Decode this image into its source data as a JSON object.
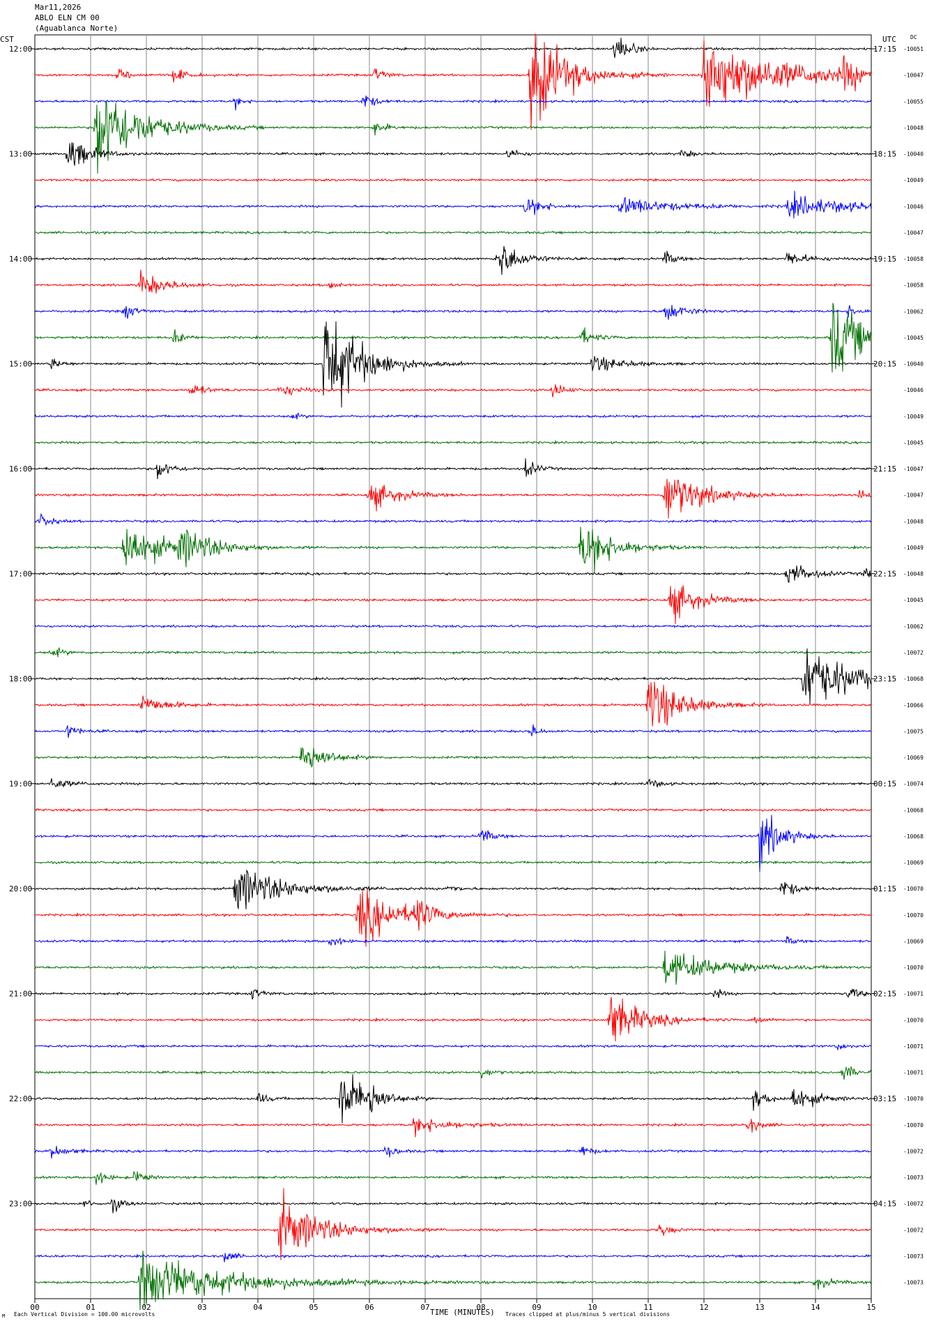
{
  "header": {
    "date": "Mar11,2026",
    "station": "ABLO ELN CM 00",
    "site": "(Aguablanca Norte)",
    "left_tz": "CST",
    "right_tz": "UTC",
    "dc_label": "DC"
  },
  "footer": {
    "xlabel": "TIME (MINUTES)",
    "scale_note": "Each Vertical Division =  100.00 microvolts",
    "clip_note": "Traces clipped at plus/minus 5 vertical divisions",
    "logo": "M"
  },
  "colors": [
    "#000000",
    "#ff0000",
    "#0000ff",
    "#007000"
  ],
  "chart_data": {
    "type": "line",
    "description": "helicorder seismogram, 15 minutes per line",
    "x_ticks": [
      "00",
      "01",
      "02",
      "03",
      "04",
      "05",
      "06",
      "07",
      "08",
      "09",
      "10",
      "11",
      "12",
      "13",
      "14",
      "15"
    ],
    "xlim": [
      0,
      15
    ],
    "hour_labels_cst": [
      "12:00",
      "13:00",
      "14:00",
      "15:00",
      "16:00",
      "17:00",
      "18:00",
      "19:00",
      "20:00",
      "21:00",
      "22:00",
      "23:00"
    ],
    "hour_labels_utc": [
      "17:15",
      "18:15",
      "19:15",
      "20:15",
      "21:15",
      "22:15",
      "23:15",
      "00:15",
      "01:15",
      "02:15",
      "03:15",
      "04:15"
    ],
    "dc_offsets": [
      "-10051",
      "-10047",
      "-10055",
      "-10048",
      "-10040",
      "-10049",
      "-10046",
      "-10047",
      "-10058",
      "-10058",
      "-10062",
      "-10045",
      "-10040",
      "-10046",
      "-10049",
      "-10045",
      "-10047",
      "-10047",
      "-10048",
      "-10049",
      "-10048",
      "-10045",
      "-10062",
      "-10072",
      "-10068",
      "-10066",
      "-10075",
      "-10069",
      "-10074",
      "-10068",
      "-10068",
      "-10069",
      "-10070",
      "-10070",
      "-10069",
      "-10070",
      "-10071",
      "-10070",
      "-10071",
      "-10071",
      "-10070",
      "-10070",
      "-10072",
      "-10073",
      "-10072",
      "-10072",
      "-10073",
      "-10073"
    ],
    "events": [
      {
        "line": 0,
        "minute": 10.4,
        "amp": 22,
        "dur": 0.4
      },
      {
        "line": 1,
        "minute": 8.9,
        "amp": 75,
        "dur": 1.0
      },
      {
        "line": 1,
        "minute": 12.0,
        "amp": 55,
        "dur": 2.2
      },
      {
        "line": 1,
        "minute": 14.5,
        "amp": 20,
        "dur": 0.5
      },
      {
        "line": 1,
        "minute": 6.1,
        "amp": 10,
        "dur": 0.3
      },
      {
        "line": 1,
        "minute": 2.5,
        "amp": 12,
        "dur": 0.3
      },
      {
        "line": 1,
        "minute": 1.5,
        "amp": 8,
        "dur": 0.4
      },
      {
        "line": 2,
        "minute": 5.9,
        "amp": 12,
        "dur": 0.3
      },
      {
        "line": 2,
        "minute": 3.6,
        "amp": 8,
        "dur": 0.2
      },
      {
        "line": 3,
        "minute": 1.1,
        "amp": 70,
        "dur": 1.2
      },
      {
        "line": 3,
        "minute": 6.1,
        "amp": 10,
        "dur": 0.3
      },
      {
        "line": 4,
        "minute": 0.6,
        "amp": 25,
        "dur": 0.6
      },
      {
        "line": 4,
        "minute": 8.5,
        "amp": 8,
        "dur": 0.3
      },
      {
        "line": 4,
        "minute": 11.6,
        "amp": 7,
        "dur": 0.3
      },
      {
        "line": 6,
        "minute": 8.8,
        "amp": 14,
        "dur": 0.5
      },
      {
        "line": 6,
        "minute": 10.5,
        "amp": 12,
        "dur": 1.5
      },
      {
        "line": 6,
        "minute": 13.5,
        "amp": 14,
        "dur": 2.0
      },
      {
        "line": 8,
        "minute": 8.3,
        "amp": 30,
        "dur": 0.6
      },
      {
        "line": 8,
        "minute": 11.3,
        "amp": 10,
        "dur": 0.3
      },
      {
        "line": 8,
        "minute": 13.5,
        "amp": 10,
        "dur": 0.6
      },
      {
        "line": 9,
        "minute": 1.9,
        "amp": 18,
        "dur": 0.7
      },
      {
        "line": 9,
        "minute": 5.3,
        "amp": 8,
        "dur": 0.2
      },
      {
        "line": 10,
        "minute": 1.6,
        "amp": 12,
        "dur": 0.3
      },
      {
        "line": 10,
        "minute": 11.3,
        "amp": 16,
        "dur": 0.5
      },
      {
        "line": 10,
        "minute": 14.6,
        "amp": 8,
        "dur": 0.3
      },
      {
        "line": 11,
        "minute": 2.5,
        "amp": 10,
        "dur": 0.3
      },
      {
        "line": 11,
        "minute": 9.8,
        "amp": 12,
        "dur": 0.4
      },
      {
        "line": 11,
        "minute": 14.3,
        "amp": 55,
        "dur": 1.0
      },
      {
        "line": 12,
        "minute": 5.2,
        "amp": 85,
        "dur": 1.0
      },
      {
        "line": 12,
        "minute": 10.0,
        "amp": 12,
        "dur": 0.8
      },
      {
        "line": 12,
        "minute": 0.3,
        "amp": 8,
        "dur": 0.3
      },
      {
        "line": 13,
        "minute": 2.8,
        "amp": 10,
        "dur": 0.4
      },
      {
        "line": 13,
        "minute": 4.4,
        "amp": 10,
        "dur": 0.5
      },
      {
        "line": 13,
        "minute": 9.3,
        "amp": 12,
        "dur": 0.3
      },
      {
        "line": 14,
        "minute": 4.6,
        "amp": 6,
        "dur": 0.2
      },
      {
        "line": 16,
        "minute": 2.2,
        "amp": 14,
        "dur": 0.4
      },
      {
        "line": 16,
        "minute": 8.8,
        "amp": 14,
        "dur": 0.3
      },
      {
        "line": 17,
        "minute": 6.0,
        "amp": 20,
        "dur": 0.8
      },
      {
        "line": 17,
        "minute": 11.3,
        "amp": 40,
        "dur": 1.0
      },
      {
        "line": 17,
        "minute": 14.8,
        "amp": 8,
        "dur": 0.3
      },
      {
        "line": 18,
        "minute": 0.1,
        "amp": 10,
        "dur": 0.3
      },
      {
        "line": 19,
        "minute": 1.6,
        "amp": 40,
        "dur": 1.0
      },
      {
        "line": 19,
        "minute": 2.6,
        "amp": 25,
        "dur": 1.0
      },
      {
        "line": 19,
        "minute": 9.8,
        "amp": 40,
        "dur": 0.9
      },
      {
        "line": 20,
        "minute": 13.5,
        "amp": 18,
        "dur": 0.6
      },
      {
        "line": 20,
        "minute": 14.9,
        "amp": 10,
        "dur": 0.2
      },
      {
        "line": 21,
        "minute": 11.4,
        "amp": 28,
        "dur": 0.8
      },
      {
        "line": 23,
        "minute": 0.3,
        "amp": 8,
        "dur": 0.3
      },
      {
        "line": 24,
        "minute": 13.8,
        "amp": 50,
        "dur": 1.3
      },
      {
        "line": 25,
        "minute": 1.9,
        "amp": 14,
        "dur": 0.7
      },
      {
        "line": 25,
        "minute": 11.0,
        "amp": 45,
        "dur": 0.9
      },
      {
        "line": 26,
        "minute": 0.6,
        "amp": 10,
        "dur": 0.3
      },
      {
        "line": 26,
        "minute": 8.9,
        "amp": 10,
        "dur": 0.2
      },
      {
        "line": 27,
        "minute": 4.8,
        "amp": 30,
        "dur": 0.6
      },
      {
        "line": 28,
        "minute": 0.3,
        "amp": 8,
        "dur": 0.5
      },
      {
        "line": 28,
        "minute": 11.0,
        "amp": 8,
        "dur": 0.3
      },
      {
        "line": 30,
        "minute": 8.0,
        "amp": 12,
        "dur": 0.3
      },
      {
        "line": 30,
        "minute": 13.0,
        "amp": 40,
        "dur": 0.6
      },
      {
        "line": 32,
        "minute": 3.6,
        "amp": 35,
        "dur": 1.3
      },
      {
        "line": 32,
        "minute": 7.4,
        "amp": 6,
        "dur": 0.3
      },
      {
        "line": 32,
        "minute": 13.4,
        "amp": 14,
        "dur": 0.4
      },
      {
        "line": 33,
        "minute": 5.8,
        "amp": 38,
        "dur": 1.2
      },
      {
        "line": 33,
        "minute": 6.8,
        "amp": 25,
        "dur": 0.4
      },
      {
        "line": 34,
        "minute": 5.3,
        "amp": 8,
        "dur": 0.3
      },
      {
        "line": 34,
        "minute": 13.5,
        "amp": 6,
        "dur": 0.2
      },
      {
        "line": 35,
        "minute": 11.3,
        "amp": 25,
        "dur": 1.5
      },
      {
        "line": 36,
        "minute": 3.9,
        "amp": 8,
        "dur": 0.3
      },
      {
        "line": 36,
        "minute": 12.2,
        "amp": 8,
        "dur": 0.2
      },
      {
        "line": 36,
        "minute": 14.6,
        "amp": 10,
        "dur": 0.3
      },
      {
        "line": 37,
        "minute": 10.3,
        "amp": 40,
        "dur": 0.9
      },
      {
        "line": 37,
        "minute": 12.9,
        "amp": 6,
        "dur": 0.3
      },
      {
        "line": 38,
        "minute": 14.4,
        "amp": 6,
        "dur": 0.2
      },
      {
        "line": 39,
        "minute": 8.0,
        "amp": 8,
        "dur": 0.3
      },
      {
        "line": 39,
        "minute": 14.5,
        "amp": 14,
        "dur": 0.3
      },
      {
        "line": 40,
        "minute": 5.5,
        "amp": 45,
        "dur": 0.7
      },
      {
        "line": 40,
        "minute": 6.0,
        "amp": 20,
        "dur": 0.3
      },
      {
        "line": 40,
        "minute": 12.9,
        "amp": 14,
        "dur": 0.4
      },
      {
        "line": 40,
        "minute": 13.6,
        "amp": 20,
        "dur": 0.6
      },
      {
        "line": 40,
        "minute": 4.0,
        "amp": 8,
        "dur": 0.3
      },
      {
        "line": 41,
        "minute": 6.8,
        "amp": 12,
        "dur": 1.0
      },
      {
        "line": 41,
        "minute": 12.8,
        "amp": 12,
        "dur": 0.3
      },
      {
        "line": 42,
        "minute": 0.3,
        "amp": 8,
        "dur": 0.5
      },
      {
        "line": 42,
        "minute": 6.3,
        "amp": 8,
        "dur": 0.3
      },
      {
        "line": 42,
        "minute": 9.8,
        "amp": 8,
        "dur": 0.3
      },
      {
        "line": 43,
        "minute": 1.1,
        "amp": 10,
        "dur": 0.3
      },
      {
        "line": 43,
        "minute": 1.8,
        "amp": 10,
        "dur": 0.3
      },
      {
        "line": 44,
        "minute": 1.4,
        "amp": 10,
        "dur": 0.3
      },
      {
        "line": 44,
        "minute": 0.9,
        "amp": 6,
        "dur": 0.2
      },
      {
        "line": 45,
        "minute": 4.4,
        "amp": 45,
        "dur": 1.2
      },
      {
        "line": 45,
        "minute": 11.2,
        "amp": 10,
        "dur": 0.3
      },
      {
        "line": 46,
        "minute": 3.4,
        "amp": 8,
        "dur": 0.3
      },
      {
        "line": 47,
        "minute": 1.9,
        "amp": 40,
        "dur": 2.5
      },
      {
        "line": 47,
        "minute": 14.0,
        "amp": 8,
        "dur": 0.5
      }
    ],
    "grid": true
  }
}
